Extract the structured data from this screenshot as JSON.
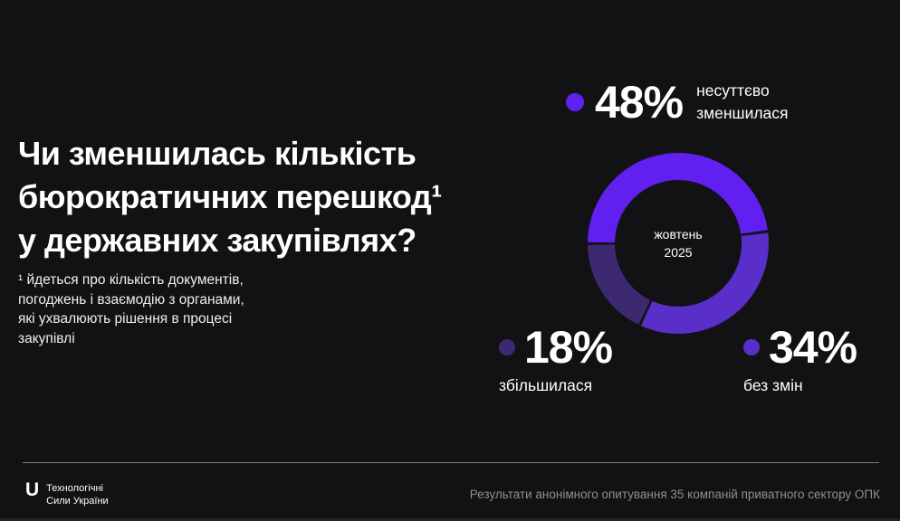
{
  "title": {
    "lines": [
      "Чи зменшилась кількість",
      "бюрократичних перешкод¹",
      "у державних закупівлях?"
    ]
  },
  "footnote": {
    "lines": [
      "¹ йдеться про кількість документів,",
      "погоджень і взаємодію з органами,",
      "які ухвалюють рішення в процесі",
      "закупівлі"
    ]
  },
  "chart_data": {
    "type": "pie",
    "donut": true,
    "direction": "clockwise",
    "start_angle_deg": 270,
    "outer_radius_px": 100,
    "inner_radius_px": 70,
    "center_label": {
      "line1": "жовтень",
      "line2": "2025"
    },
    "slices": [
      {
        "label": "несуттєво зменшилася",
        "value": 48,
        "color": "#611FF0"
      },
      {
        "label": "без змін",
        "value": 34,
        "color": "#5A2EC8"
      },
      {
        "label": "збільшилася",
        "value": 18,
        "color": "#3C2970"
      }
    ]
  },
  "legend": {
    "top": {
      "value": "48%",
      "label_line1": "несуттєво",
      "label_line2": "зменшилася",
      "color": "#611FF0"
    },
    "bottom_left": {
      "value": "18%",
      "label": "збільшилася",
      "color": "#3C2970"
    },
    "bottom_right": {
      "value": "34%",
      "label": "без змін",
      "color": "#5A2EC8"
    }
  },
  "footer": {
    "logo_letter": "U",
    "org_line1": "Технологічні",
    "org_line2": "Сили України",
    "source": "Результати анонімного опитування 35 компаній приватного сектору ОПК"
  },
  "colors": {
    "background": "#121214",
    "accent_bright": "#611FF0",
    "accent_medium": "#5A2EC8",
    "accent_dark": "#3C2970",
    "footer_text": "#8f8f8f"
  }
}
